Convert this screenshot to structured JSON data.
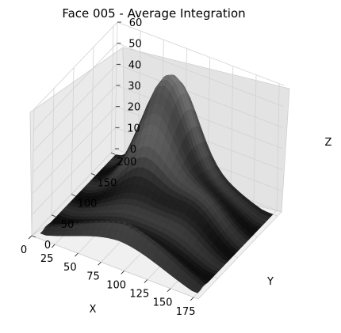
{
  "chart_data": {
    "type": "surface3d",
    "title": "Face 005 - Average Integration",
    "xlabel": "X",
    "ylabel": "Y",
    "zlabel": "Z",
    "xlim": [
      0,
      180
    ],
    "ylim": [
      0,
      210
    ],
    "zlim": [
      0,
      60
    ],
    "x_ticks": [
      "0",
      "25",
      "50",
      "75",
      "100",
      "125",
      "150",
      "175"
    ],
    "y_ticks": [
      "0",
      "50",
      "100",
      "150",
      "200"
    ],
    "z_ticks": [
      "0",
      "10",
      "20",
      "30",
      "40",
      "50",
      "60"
    ],
    "grid": true,
    "colormap": "gray",
    "background_panes": "#f2f2f2"
  }
}
